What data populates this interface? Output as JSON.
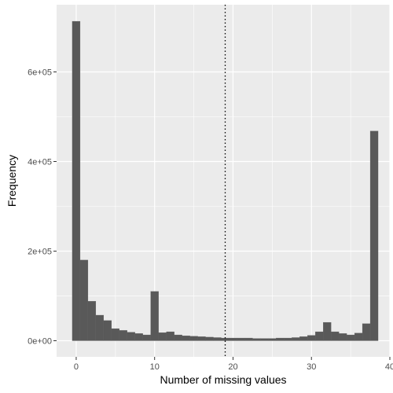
{
  "chart_data": {
    "type": "bar",
    "subtype": "histogram",
    "xlabel": "Number of missing values",
    "ylabel": "Frequency",
    "xlim": [
      -2.5,
      40.0
    ],
    "ylim": [
      -36000,
      750000
    ],
    "x_ticks": [
      0,
      10,
      20,
      30,
      40
    ],
    "y_ticks": [
      0,
      200000,
      400000,
      600000
    ],
    "y_tick_labels": [
      "0e+00",
      "2e+05",
      "4e+05",
      "6e+05"
    ],
    "bin_width": 1,
    "bins": [
      0,
      1,
      2,
      3,
      4,
      5,
      6,
      7,
      8,
      9,
      10,
      11,
      12,
      13,
      14,
      15,
      16,
      17,
      18,
      19,
      20,
      21,
      22,
      23,
      24,
      25,
      26,
      27,
      28,
      29,
      30,
      31,
      32,
      33,
      34,
      35,
      36,
      37,
      38
    ],
    "values": [
      713000,
      180000,
      88000,
      57000,
      45000,
      27000,
      23000,
      19000,
      16000,
      13000,
      110000,
      18000,
      20000,
      13000,
      11000,
      10000,
      9000,
      8000,
      7000,
      6000,
      6000,
      6000,
      6000,
      5000,
      5000,
      5000,
      6000,
      6000,
      7000,
      9000,
      12000,
      20000,
      41000,
      20000,
      16000,
      13000,
      17000,
      38000,
      468000
    ],
    "bar_color": "#595959",
    "panel_color": "#ebebeb",
    "grid_color": "#ffffff",
    "vline": {
      "x": 19,
      "style": "dotted",
      "color": "#000000"
    }
  }
}
